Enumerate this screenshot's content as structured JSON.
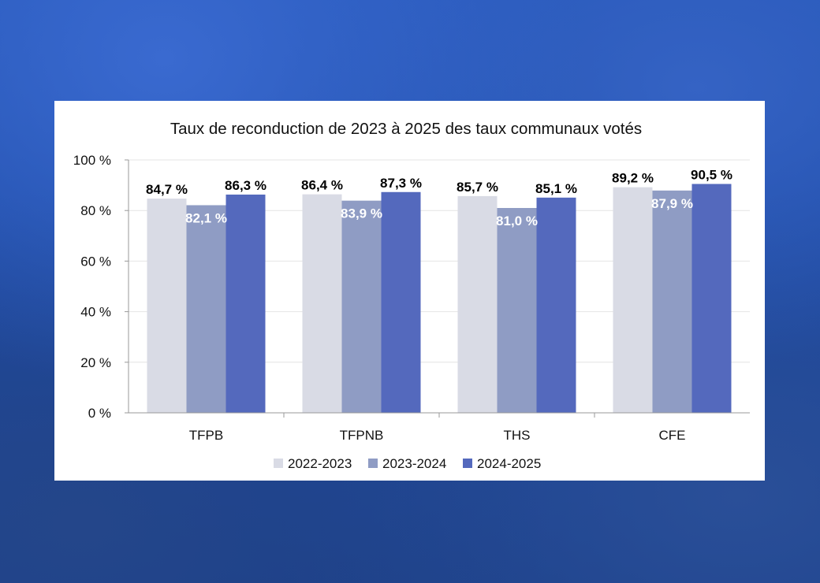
{
  "chart_data": {
    "type": "bar",
    "title": "Taux de reconduction de 2023 à 2025 des taux communaux votés",
    "categories": [
      "TFPB",
      "TFPNB",
      "THS",
      "CFE"
    ],
    "series": [
      {
        "name": "2022-2023",
        "color": "#d9dbe5",
        "values": [
          84.7,
          86.4,
          85.7,
          89.2
        ],
        "labels": [
          "84,7 %",
          "86,4 %",
          "85,7 %",
          "89,2 %"
        ],
        "label_color": "#000000"
      },
      {
        "name": "2023-2024",
        "color": "#8f9cc4",
        "values": [
          82.1,
          83.9,
          81.0,
          87.9
        ],
        "labels": [
          "82,1 %",
          "83,9 %",
          "81,0 %",
          "87,9 %"
        ],
        "label_color": "#ffffff"
      },
      {
        "name": "2024-2025",
        "color": "#5469bd",
        "values": [
          86.3,
          87.3,
          85.1,
          90.5
        ],
        "labels": [
          "86,3 %",
          "87,3 %",
          "85,1 %",
          "90,5 %"
        ],
        "label_color": "#000000"
      }
    ],
    "ylim": [
      0,
      100
    ],
    "yticks": [
      "0 %",
      "20 %",
      "40 %",
      "60 %",
      "80 %",
      "100 %"
    ],
    "grid": true,
    "legend_position": "bottom"
  }
}
